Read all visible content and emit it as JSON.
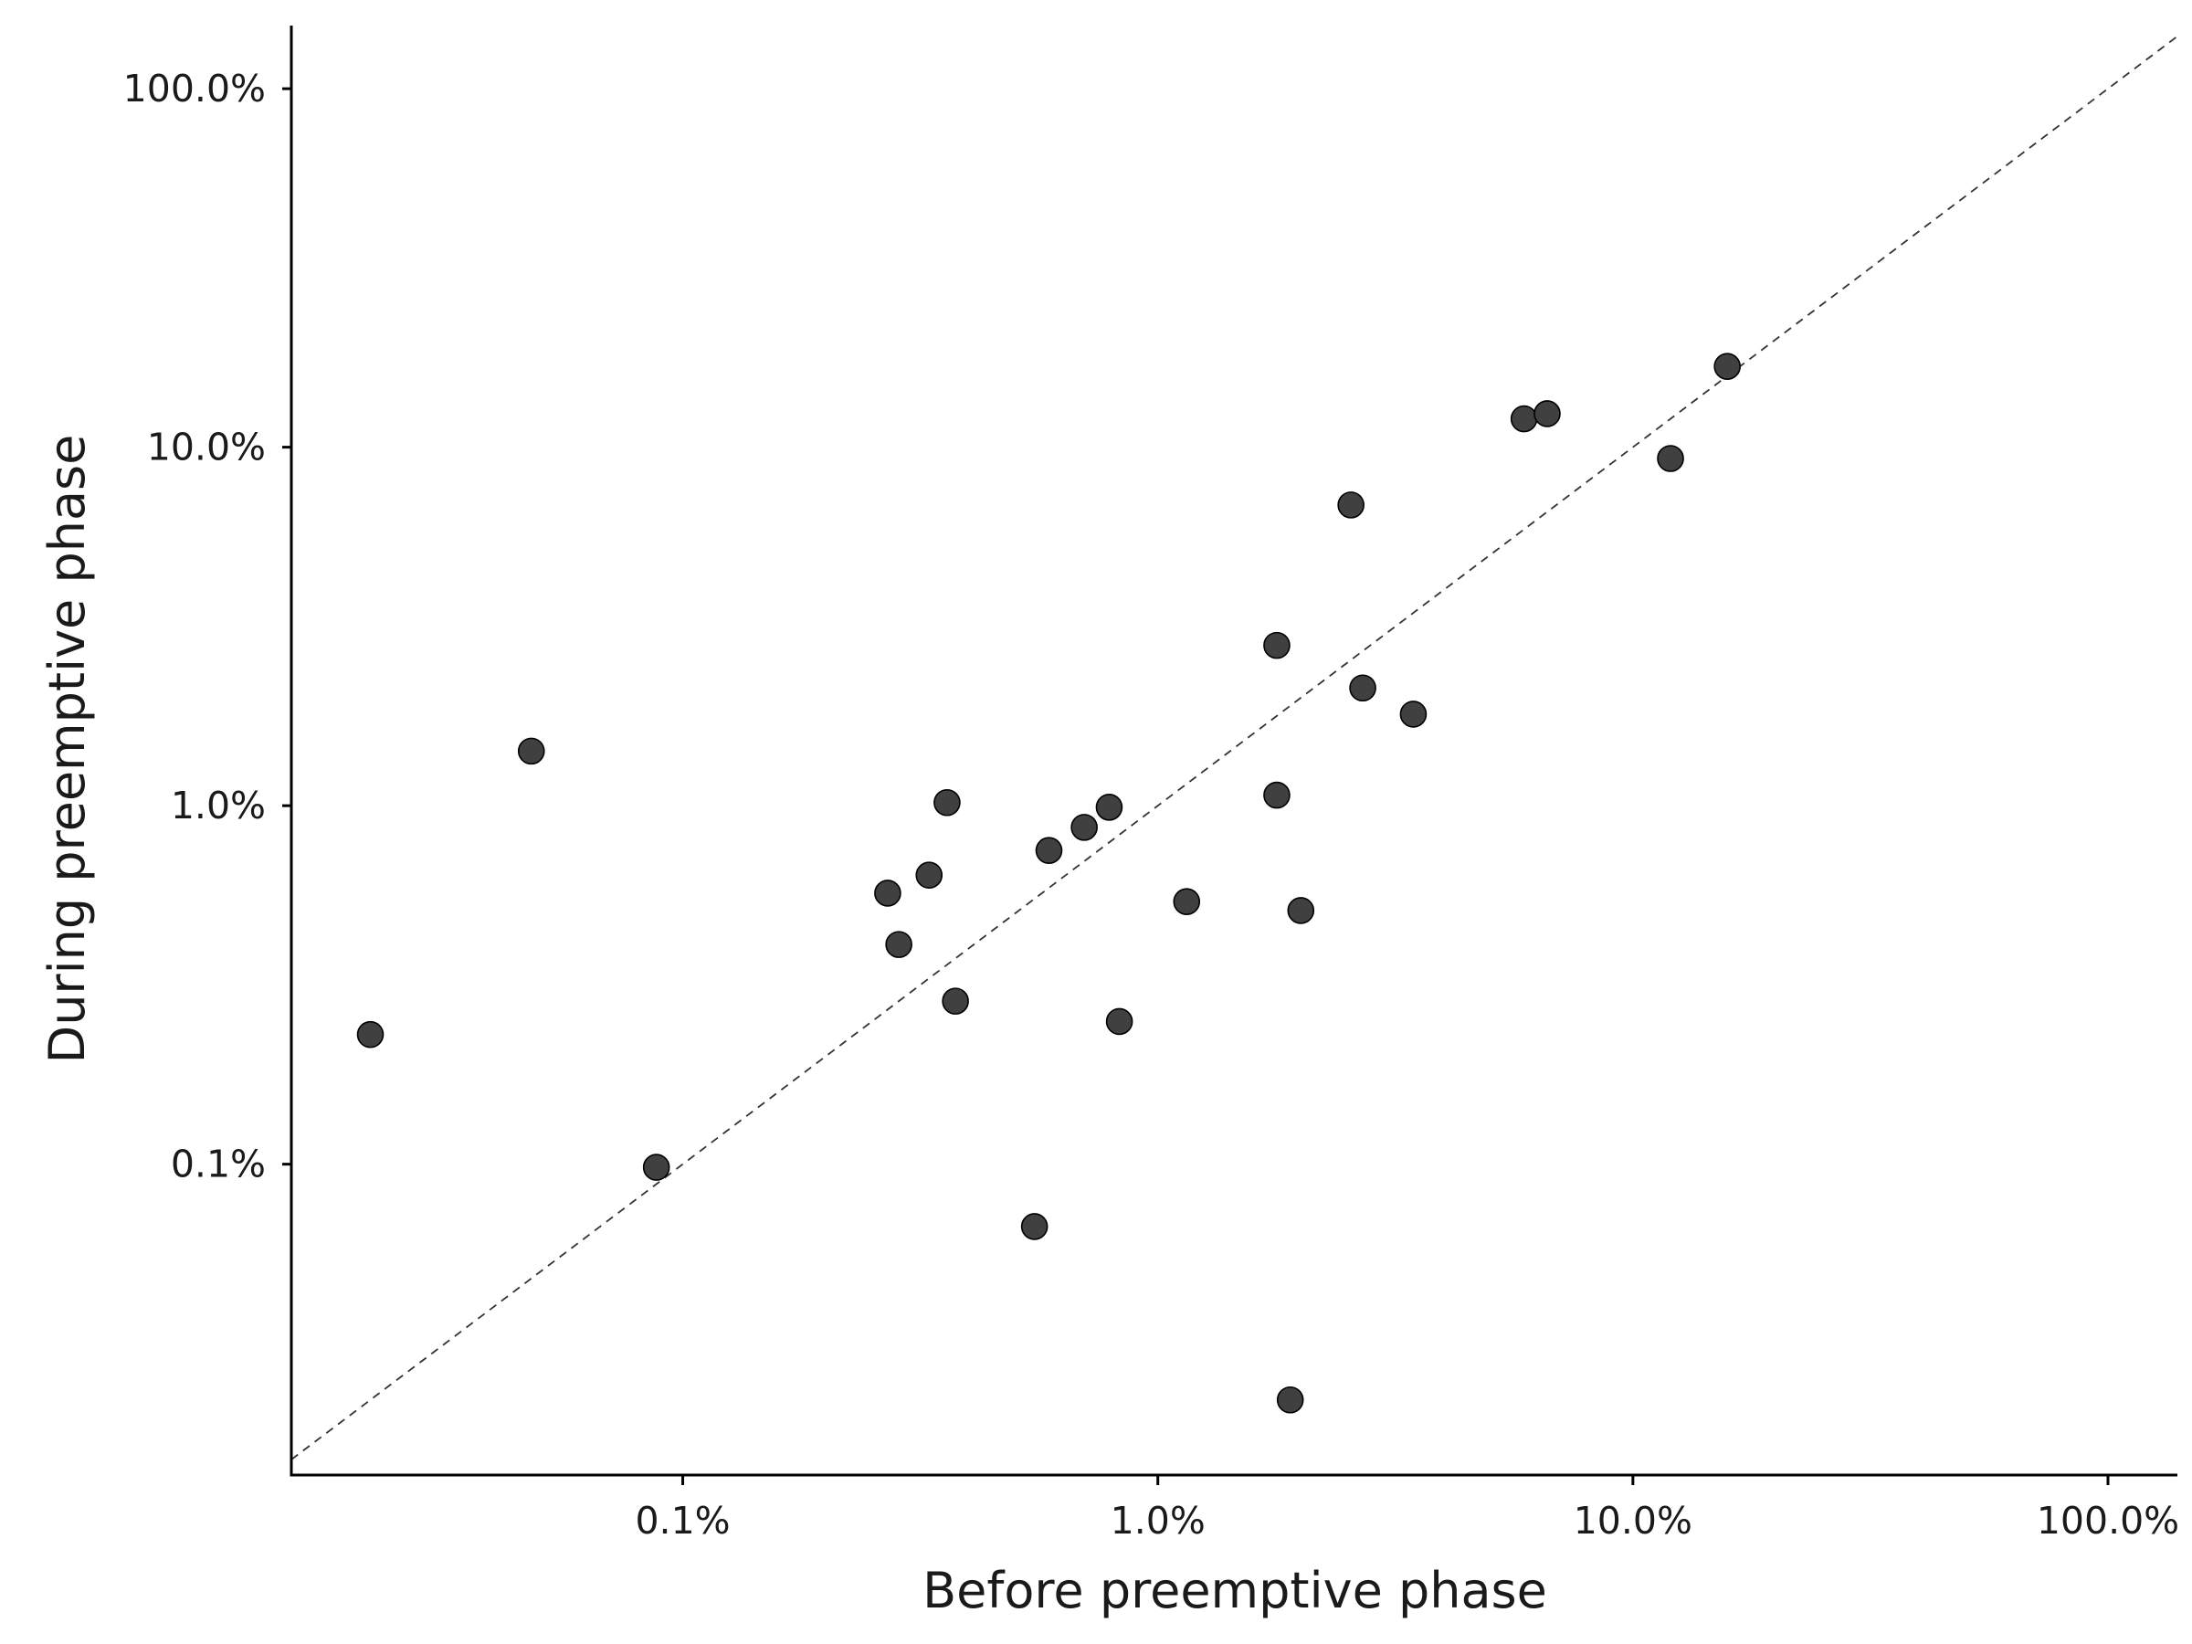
{
  "chart_data": {
    "type": "scatter",
    "title": "",
    "xlabel": "Before preemptive phase",
    "ylabel": "During preemptive phase",
    "x_scale": "log",
    "y_scale": "log",
    "xlim": [
      0.015,
      140.0
    ],
    "ylim": [
      0.0135,
      150.0
    ],
    "x_ticks": [
      0.1,
      1.0,
      10.0,
      100.0
    ],
    "x_tick_labels": [
      "0.1%",
      "1.0%",
      "10.0%",
      "100.0%"
    ],
    "y_ticks": [
      0.1,
      1.0,
      10.0,
      100.0
    ],
    "y_tick_labels": [
      "0.1%",
      "1.0%",
      "10.0%",
      "100.0%"
    ],
    "reference_line": "y = x (dashed)",
    "grid": false,
    "marker_color": "#404040",
    "marker_edge_color": "#000000",
    "points": [
      {
        "x": 0.022,
        "y": 0.23
      },
      {
        "x": 0.048,
        "y": 1.42
      },
      {
        "x": 0.088,
        "y": 0.098
      },
      {
        "x": 0.27,
        "y": 0.57
      },
      {
        "x": 0.285,
        "y": 0.41
      },
      {
        "x": 0.33,
        "y": 0.64
      },
      {
        "x": 0.36,
        "y": 1.02
      },
      {
        "x": 0.375,
        "y": 0.285
      },
      {
        "x": 0.55,
        "y": 0.067
      },
      {
        "x": 0.59,
        "y": 0.75
      },
      {
        "x": 0.7,
        "y": 0.87
      },
      {
        "x": 0.79,
        "y": 0.99
      },
      {
        "x": 0.83,
        "y": 0.25
      },
      {
        "x": 1.15,
        "y": 0.54
      },
      {
        "x": 1.78,
        "y": 2.8
      },
      {
        "x": 1.78,
        "y": 1.07
      },
      {
        "x": 1.9,
        "y": 0.022
      },
      {
        "x": 2.0,
        "y": 0.51
      },
      {
        "x": 2.55,
        "y": 6.9
      },
      {
        "x": 2.7,
        "y": 2.13
      },
      {
        "x": 3.45,
        "y": 1.8
      },
      {
        "x": 5.9,
        "y": 12.0
      },
      {
        "x": 6.6,
        "y": 12.4
      },
      {
        "x": 12.0,
        "y": 9.3
      },
      {
        "x": 15.8,
        "y": 16.8
      }
    ]
  }
}
